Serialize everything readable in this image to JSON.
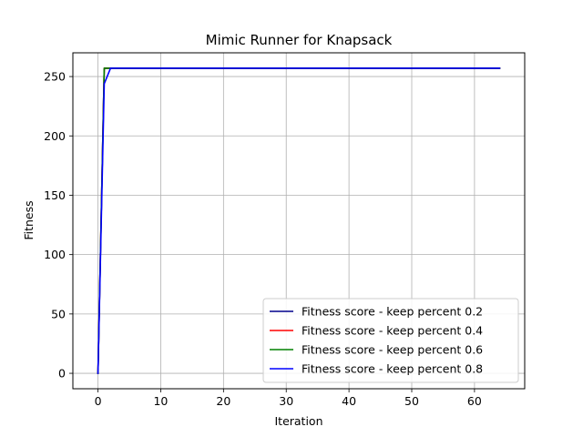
{
  "chart_data": {
    "type": "line",
    "title": "Mimic Runner for Knapsack",
    "xlabel": "Iteration",
    "ylabel": "Fitness",
    "xlim": [
      -4,
      68
    ],
    "ylim": [
      -13,
      270
    ],
    "xticks": [
      0,
      10,
      20,
      30,
      40,
      50,
      60
    ],
    "yticks": [
      0,
      50,
      100,
      150,
      200,
      250
    ],
    "grid": true,
    "legend_position": "lower right",
    "series": [
      {
        "name": "Fitness score - keep percent 0.2",
        "color": "#00008b",
        "x": [
          0,
          1,
          64
        ],
        "y": [
          0,
          257,
          257
        ]
      },
      {
        "name": "Fitness score - keep percent 0.4",
        "color": "#ff0000",
        "x": [
          0,
          1,
          64
        ],
        "y": [
          0,
          257,
          257
        ]
      },
      {
        "name": "Fitness score - keep percent 0.6",
        "color": "#008000",
        "x": [
          0,
          1,
          64
        ],
        "y": [
          0,
          257,
          257
        ]
      },
      {
        "name": "Fitness score - keep percent 0.8",
        "color": "#0000ff",
        "x": [
          0,
          1,
          2,
          64
        ],
        "y": [
          0,
          244,
          257,
          257
        ]
      }
    ]
  }
}
